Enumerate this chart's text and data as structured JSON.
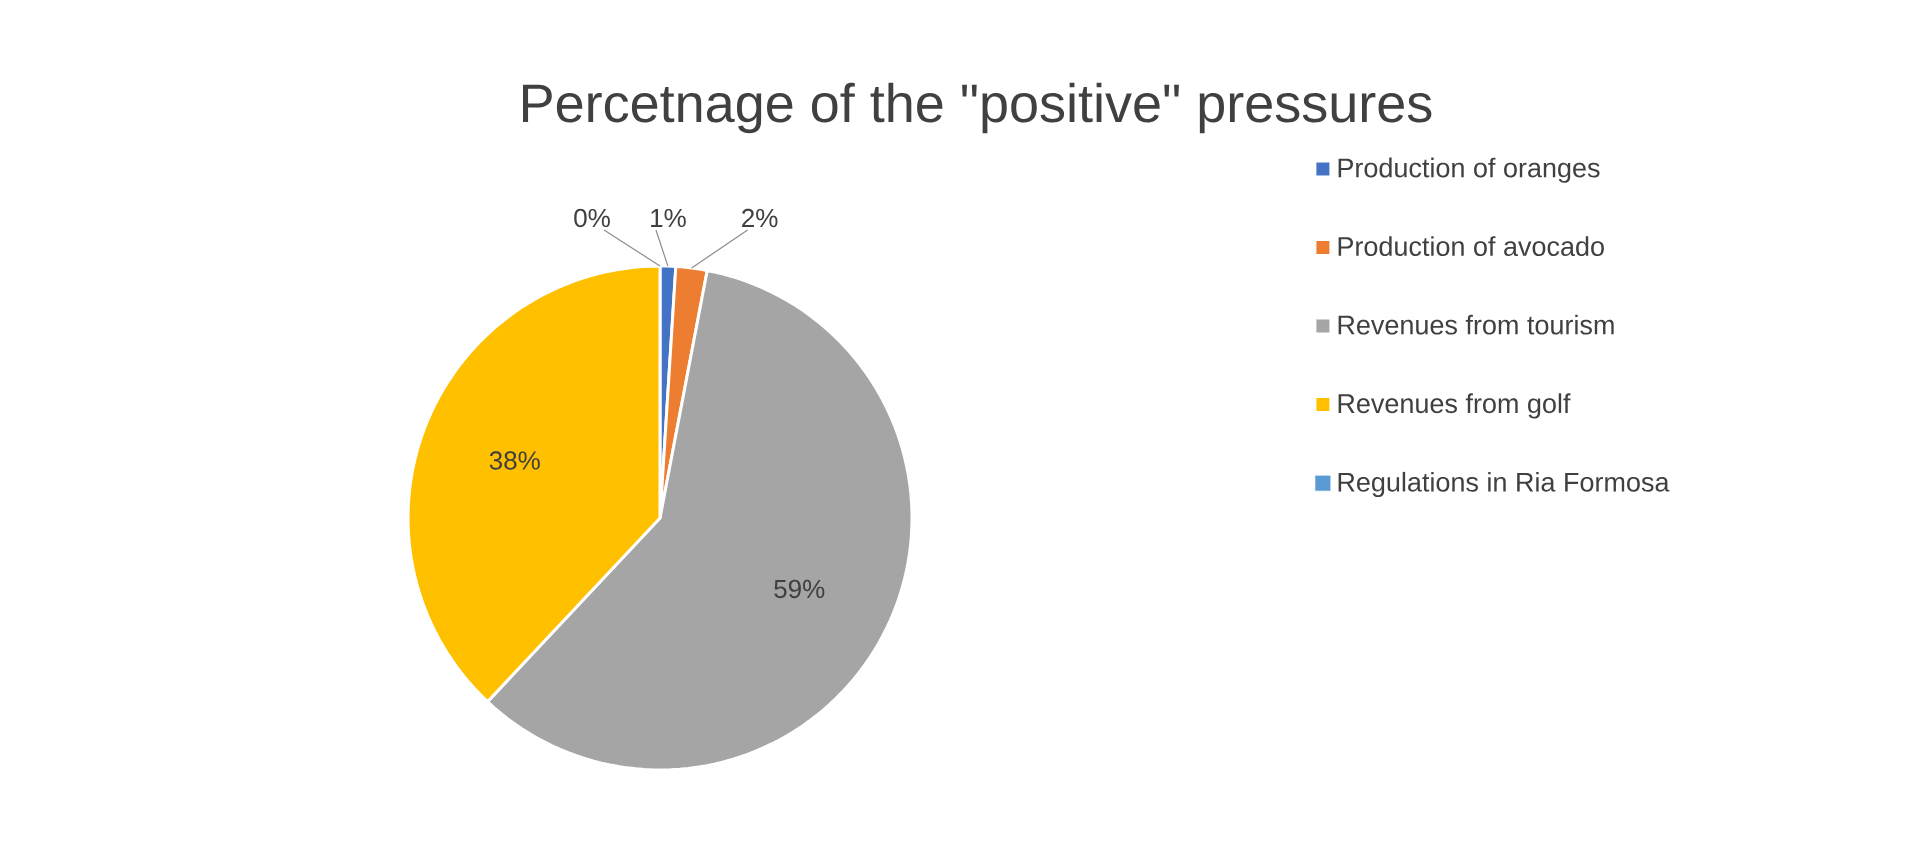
{
  "chart_data": {
    "type": "pie",
    "title": "Percetnage of the \"positive\" pressures",
    "categories": [
      "Production of oranges",
      "Production of avocado",
      "Revenues from tourism",
      "Revenues from golf",
      "Regulations in Ria Formosa"
    ],
    "values": [
      1,
      2,
      59,
      38,
      0
    ],
    "colors": [
      "#4472c4",
      "#ed7d31",
      "#a5a5a5",
      "#ffc000",
      "#5b9bd5"
    ],
    "value_labels": [
      "1%",
      "2%",
      "59%",
      "38%",
      "0%"
    ],
    "legend": "right"
  }
}
